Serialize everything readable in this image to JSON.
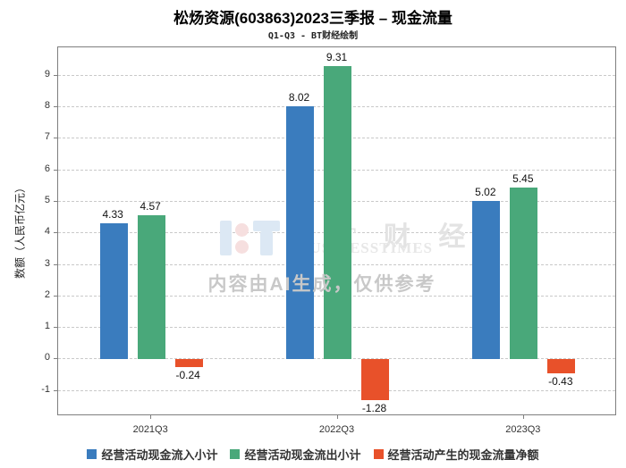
{
  "header": {
    "title": "松炀资源(603863)2023三季报 – 现金流量",
    "subtitle": "Q1-Q3 - BT财经绘制"
  },
  "watermark": {
    "brand_cn": "B T 财 经",
    "brand_en": "BUSINESSTIMES",
    "disclaimer": "内容由AI生成，仅供参考"
  },
  "chart_data": {
    "type": "bar",
    "categories": [
      "2021Q3",
      "2022Q3",
      "2023Q3"
    ],
    "series": [
      {
        "name": "经营活动现金流入小计",
        "color": "#3a7cbe",
        "values": [
          4.33,
          8.02,
          5.02
        ]
      },
      {
        "name": "经营活动现金流出小计",
        "color": "#49a87a",
        "values": [
          4.57,
          9.31,
          5.45
        ]
      },
      {
        "name": "经营活动产生的现金流量净额",
        "color": "#e8512a",
        "values": [
          -0.24,
          -1.28,
          -0.43
        ]
      }
    ],
    "title": "松炀资源(603863)2023三季报 – 现金流量",
    "subtitle": "Q1-Q3 - BT财经绘制",
    "xlabel": "",
    "ylabel": "数额（人民币亿元）",
    "ylim": [
      -1.8,
      9.9
    ],
    "yticks": [
      -1,
      0,
      1,
      2,
      3,
      4,
      5,
      6,
      7,
      8,
      9
    ],
    "grid": "horizontal-dashed",
    "legend_position": "bottom",
    "bar_value_labels": true
  }
}
